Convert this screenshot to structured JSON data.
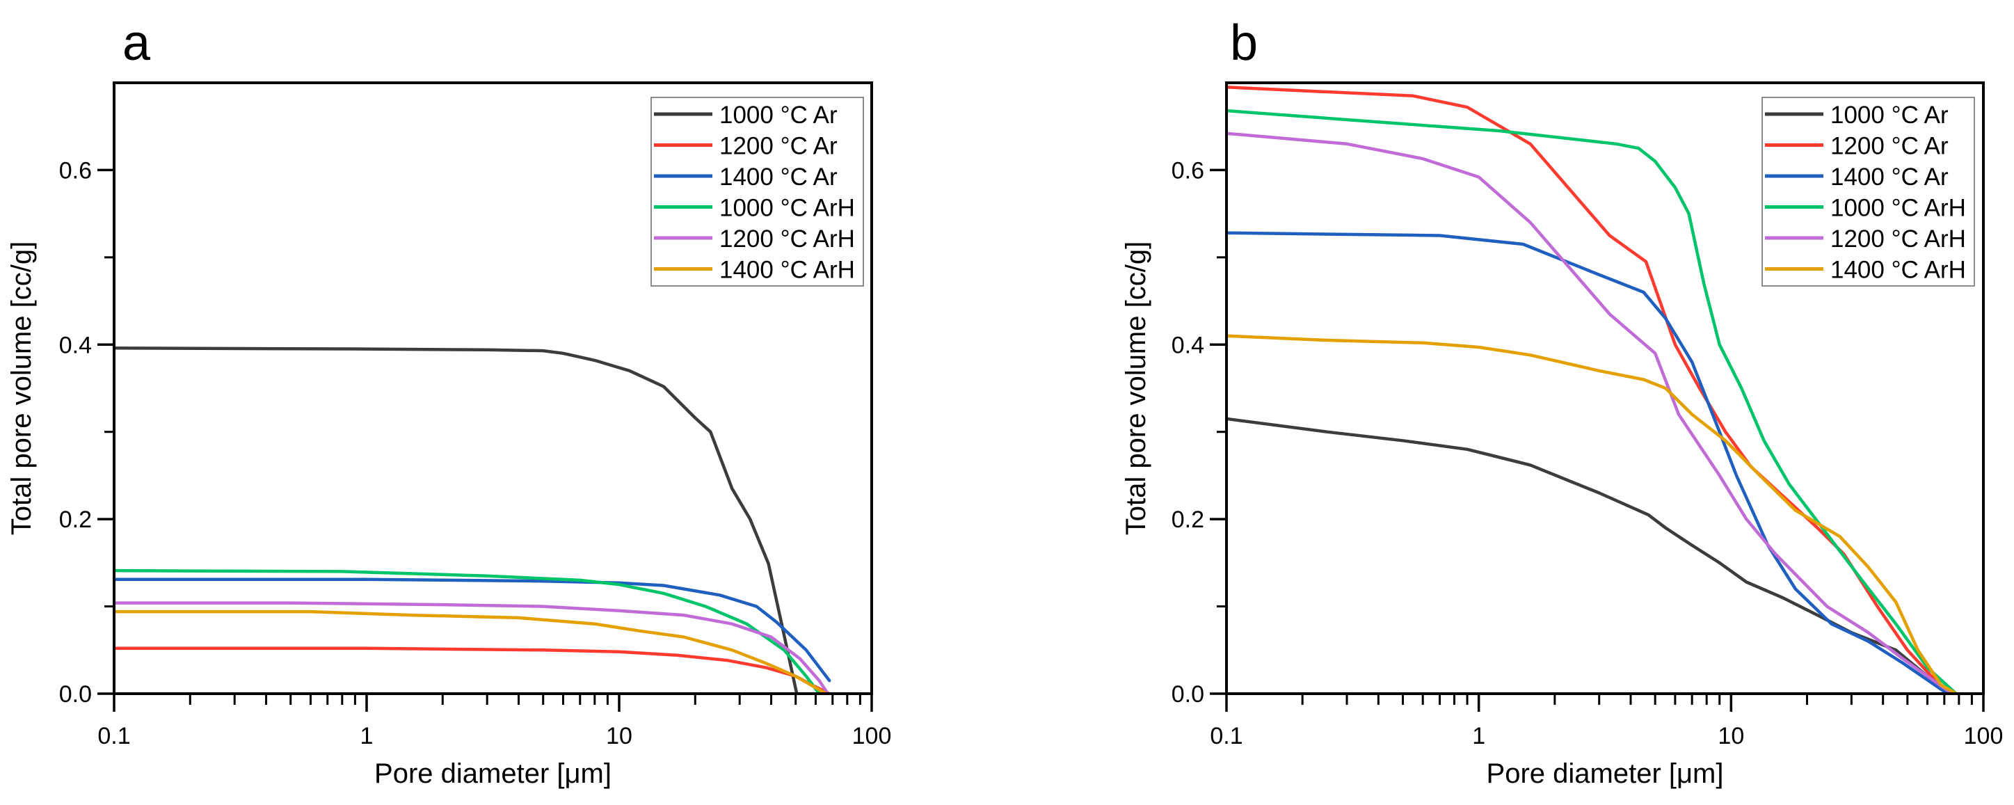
{
  "chart_data": [
    {
      "type": "line",
      "panel_label": "a",
      "xlabel": "Pore diameter [μm]",
      "ylabel": "Total pore volume [cc/g]",
      "xscale": "log",
      "xlim": [
        0.1,
        100
      ],
      "ylim": [
        0,
        0.7
      ],
      "xticks": [
        0.1,
        1,
        10,
        100
      ],
      "xtick_labels": [
        "0.1",
        "1",
        "10",
        "100"
      ],
      "yticks": [
        0.0,
        0.2,
        0.4,
        0.6
      ],
      "ytick_labels": [
        "0.0",
        "0.2",
        "0.4",
        "0.6"
      ],
      "grid": false,
      "legend_position": "top-right",
      "series": [
        {
          "name": "1000 °C Ar",
          "color": "#3c3c3c",
          "x": [
            0.1,
            1,
            3,
            5,
            6,
            8,
            11,
            15,
            20,
            23,
            28,
            33,
            39,
            44,
            50.5
          ],
          "y": [
            0.396,
            0.395,
            0.394,
            0.393,
            0.39,
            0.382,
            0.37,
            0.352,
            0.316,
            0.3,
            0.235,
            0.2,
            0.149,
            0.08,
            0.0
          ]
        },
        {
          "name": "1200 °C Ar",
          "color": "#ff3b30",
          "x": [
            0.1,
            1,
            5,
            10,
            17,
            27,
            38,
            50,
            58,
            68
          ],
          "y": [
            0.052,
            0.052,
            0.05,
            0.048,
            0.044,
            0.038,
            0.03,
            0.02,
            0.01,
            0.0
          ]
        },
        {
          "name": "1400 °C Ar",
          "color": "#1f5fbf",
          "x": [
            0.1,
            1,
            5,
            10,
            15,
            25,
            35,
            42,
            55,
            68
          ],
          "y": [
            0.131,
            0.131,
            0.129,
            0.127,
            0.124,
            0.113,
            0.1,
            0.082,
            0.05,
            0.015
          ]
        },
        {
          "name": "1000 °C ArH",
          "color": "#00c46a",
          "x": [
            0.1,
            0.8,
            3,
            7,
            10,
            15,
            22,
            32,
            45,
            55,
            62
          ],
          "y": [
            0.141,
            0.14,
            0.135,
            0.13,
            0.125,
            0.115,
            0.1,
            0.08,
            0.05,
            0.02,
            0.0
          ]
        },
        {
          "name": "1200 °C ArH",
          "color": "#c06bd6",
          "x": [
            0.1,
            0.5,
            2,
            5,
            10,
            18,
            28,
            40,
            52,
            62,
            67
          ],
          "y": [
            0.104,
            0.104,
            0.102,
            0.1,
            0.095,
            0.09,
            0.08,
            0.065,
            0.04,
            0.015,
            0.0
          ]
        },
        {
          "name": "1400 °C ArH",
          "color": "#e3a000",
          "x": [
            0.1,
            0.6,
            1.5,
            4,
            8,
            12,
            18,
            28,
            38,
            50,
            66
          ],
          "y": [
            0.094,
            0.094,
            0.09,
            0.087,
            0.08,
            0.072,
            0.065,
            0.05,
            0.035,
            0.02,
            0.0
          ]
        }
      ]
    },
    {
      "type": "line",
      "panel_label": "b",
      "xlabel": "Pore diameter [μm]",
      "ylabel": "Total pore volume [cc/g]",
      "xscale": "log",
      "xlim": [
        0.1,
        100
      ],
      "ylim": [
        0,
        0.7
      ],
      "xticks": [
        0.1,
        1,
        10,
        100
      ],
      "xtick_labels": [
        "0.1",
        "1",
        "10",
        "100"
      ],
      "yticks": [
        0.0,
        0.2,
        0.4,
        0.6
      ],
      "ytick_labels": [
        "0.0",
        "0.2",
        "0.4",
        "0.6"
      ],
      "grid": false,
      "legend_position": "top-right",
      "series": [
        {
          "name": "1000 °C Ar",
          "color": "#3c3c3c",
          "x": [
            0.1,
            0.25,
            0.5,
            0.9,
            1.6,
            3,
            4.7,
            5.5,
            7,
            9,
            11.5,
            16,
            22,
            30,
            45,
            60,
            72
          ],
          "y": [
            0.315,
            0.3,
            0.29,
            0.28,
            0.262,
            0.23,
            0.205,
            0.19,
            0.17,
            0.15,
            0.128,
            0.11,
            0.09,
            0.07,
            0.05,
            0.02,
            0.0
          ]
        },
        {
          "name": "1200 °C Ar",
          "color": "#ff3b30",
          "x": [
            0.1,
            0.55,
            0.9,
            1.6,
            3.3,
            4.6,
            6,
            7.5,
            9.5,
            12,
            17,
            22,
            28,
            38,
            50,
            72
          ],
          "y": [
            0.695,
            0.685,
            0.672,
            0.63,
            0.525,
            0.495,
            0.4,
            0.35,
            0.3,
            0.26,
            0.22,
            0.19,
            0.16,
            0.1,
            0.05,
            0.0
          ]
        },
        {
          "name": "1400 °C Ar",
          "color": "#1f5fbf",
          "x": [
            0.1,
            0.7,
            1.5,
            3,
            4.5,
            5.5,
            7,
            9,
            10.5,
            14,
            18,
            25,
            35,
            48,
            72
          ],
          "y": [
            0.528,
            0.525,
            0.515,
            0.48,
            0.46,
            0.43,
            0.38,
            0.3,
            0.25,
            0.17,
            0.12,
            0.08,
            0.06,
            0.035,
            0.0
          ]
        },
        {
          "name": "1000 °C ArH",
          "color": "#00c46a",
          "x": [
            0.1,
            0.4,
            1.2,
            3.5,
            4.3,
            5,
            6,
            6.8,
            7.8,
            9,
            11,
            13.5,
            17,
            23,
            33,
            45,
            60,
            78
          ],
          "y": [
            0.668,
            0.655,
            0.645,
            0.63,
            0.625,
            0.61,
            0.58,
            0.55,
            0.47,
            0.4,
            0.35,
            0.29,
            0.24,
            0.19,
            0.13,
            0.08,
            0.03,
            0.0
          ]
        },
        {
          "name": "1200 °C ArH",
          "color": "#c06bd6",
          "x": [
            0.1,
            0.3,
            0.6,
            1,
            1.6,
            3.3,
            5,
            6.2,
            9,
            11.5,
            15,
            24,
            35,
            48,
            75
          ],
          "y": [
            0.642,
            0.63,
            0.613,
            0.592,
            0.54,
            0.435,
            0.39,
            0.32,
            0.25,
            0.2,
            0.16,
            0.1,
            0.07,
            0.04,
            0.0
          ]
        },
        {
          "name": "1400 °C ArH",
          "color": "#e3a000",
          "x": [
            0.1,
            0.25,
            0.6,
            1,
            1.6,
            3,
            4.5,
            5.5,
            7,
            9.5,
            13,
            18,
            27,
            35,
            45,
            55,
            68,
            78
          ],
          "y": [
            0.41,
            0.405,
            0.402,
            0.397,
            0.388,
            0.37,
            0.36,
            0.35,
            0.32,
            0.29,
            0.25,
            0.21,
            0.18,
            0.145,
            0.105,
            0.05,
            0.01,
            0.0
          ]
        }
      ]
    }
  ]
}
